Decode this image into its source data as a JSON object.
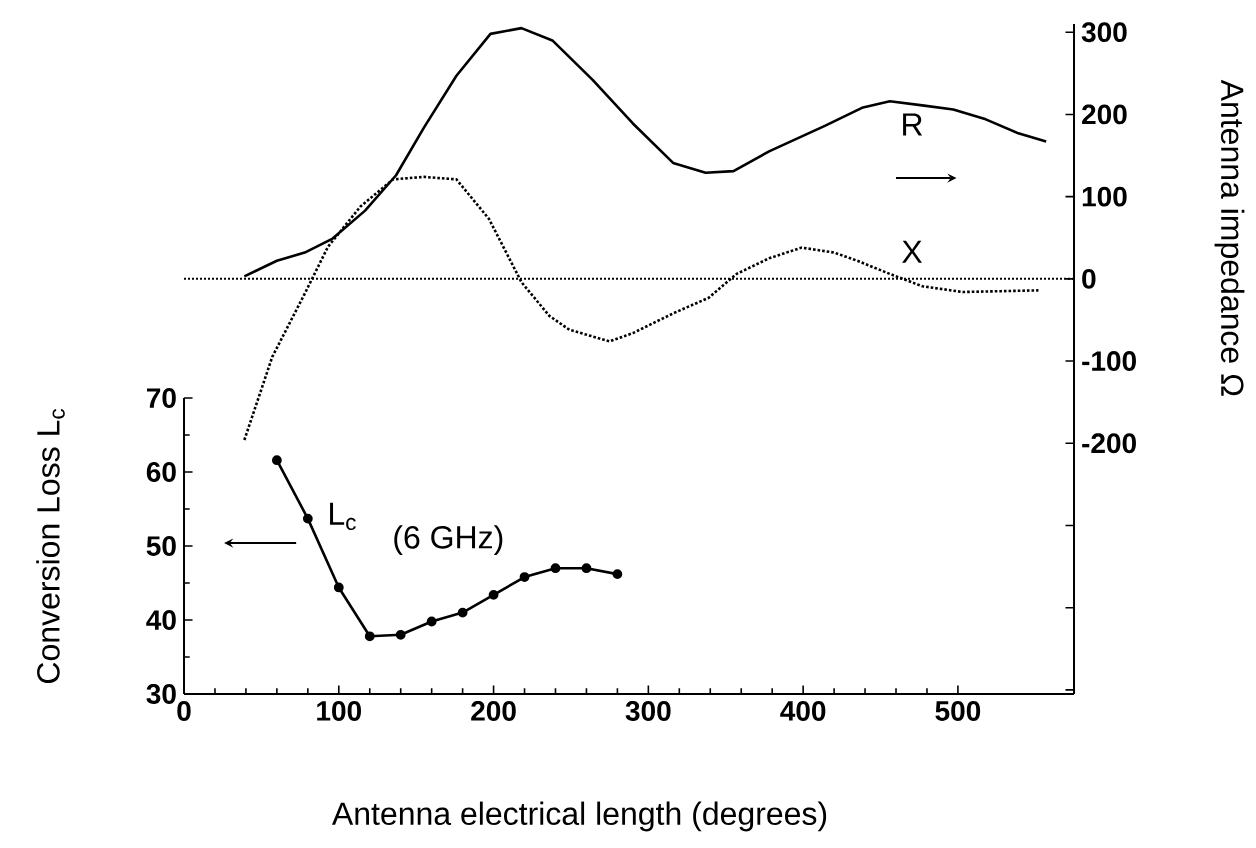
{
  "chart_data": {
    "type": "line",
    "xlabel": "Antenna electrical length   (degrees)",
    "ylabel": "Antenna impedance  Ω",
    "y2label": "Conversion Loss  L$_{c}$",
    "annotations": [
      "(6 GHz)"
    ],
    "xlim": [
      0,
      575
    ],
    "xticks": [
      0,
      100,
      200,
      300,
      400,
      500
    ],
    "ylim": [
      -505,
      310
    ],
    "yticks": [
      {
        "value": -500,
        "label": null
      },
      {
        "value": -400,
        "label": null
      },
      {
        "value": -300,
        "label": null
      },
      -200,
      -100,
      0,
      100,
      200,
      300
    ],
    "y2lim": [
      30,
      70
    ],
    "y2ticks": [
      30,
      40,
      50,
      60,
      70
    ],
    "grid": false,
    "legend": false,
    "ref_lines": [
      {
        "axis": "y",
        "value": 0,
        "line_style": "dotted",
        "color": "#000000"
      }
    ],
    "series": [
      {
        "name": "R",
        "color": "#000000",
        "line_style": "solid",
        "marker": "none",
        "x": [
          39,
          60,
          78,
          96,
          117,
          137,
          155,
          176,
          198,
          218,
          238,
          264,
          290,
          316,
          337,
          355,
          378,
          414,
          438,
          456,
          477,
          497,
          518,
          539,
          557
        ],
        "values": [
          3,
          22,
          32,
          49,
          83,
          126,
          184,
          247,
          298,
          305,
          290,
          242,
          189,
          141,
          129,
          131,
          155,
          186,
          208,
          216,
          211,
          206,
          194,
          177,
          167
        ]
      },
      {
        "name": "X",
        "color": "#000000",
        "line_style": "dotted",
        "marker": "none",
        "x": [
          39,
          57,
          78,
          93,
          114,
          135,
          155,
          176,
          197,
          218,
          236,
          249,
          275,
          290,
          316,
          339,
          357,
          378,
          399,
          420,
          435,
          456,
          477,
          503,
          528,
          552
        ],
        "values": [
          -196,
          -95,
          -18,
          39,
          88,
          121,
          124,
          121,
          73,
          -4,
          -45,
          -62,
          -76,
          -66,
          -42,
          -23,
          6,
          25,
          38,
          32,
          22,
          6,
          -9,
          -16,
          -15,
          -14
        ]
      },
      {
        "name": "L$_{c}$",
        "color": "#000000",
        "axis": "y2",
        "line_style": "solid",
        "marker": "circle",
        "x": [
          60,
          80,
          100,
          120,
          140,
          160,
          180,
          200,
          220,
          240,
          260,
          280
        ],
        "values": [
          61.6,
          53.7,
          44.4,
          37.8,
          38.0,
          39.8,
          41.0,
          43.4,
          45.8,
          47.0,
          47.0,
          46.2
        ]
      }
    ]
  }
}
